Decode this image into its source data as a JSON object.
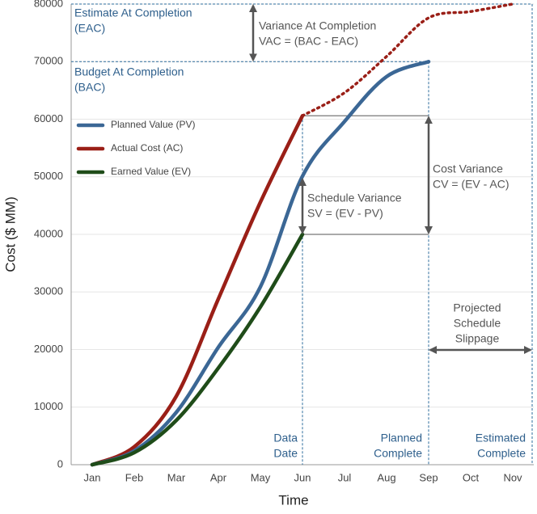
{
  "chart_data": {
    "type": "line",
    "x_label": "Time",
    "y_label": "Cost ($ MM)",
    "categories": [
      "Jan",
      "Feb",
      "Mar",
      "Apr",
      "May",
      "Jun",
      "Jul",
      "Aug",
      "Sep",
      "Oct",
      "Nov"
    ],
    "ylim": [
      0,
      80000
    ],
    "yticks": [
      0,
      10000,
      20000,
      30000,
      40000,
      50000,
      60000,
      70000,
      80000
    ],
    "grid": true,
    "series": [
      {
        "name": "Planned Value (PV)",
        "color": "#3b6795",
        "values": [
          0,
          2400,
          9100,
          20400,
          30900,
          50100,
          59600,
          67400,
          70000,
          null,
          null
        ]
      },
      {
        "name": "Actual Cost (AC)",
        "color": "#9a1f17",
        "values": [
          0,
          3100,
          11900,
          28800,
          45600,
          60600,
          null,
          null,
          null,
          null,
          null
        ],
        "projected_values": [
          null,
          null,
          null,
          null,
          null,
          60600,
          64600,
          70900,
          77600,
          78700,
          80000
        ]
      },
      {
        "name": "Earned Value (EV)",
        "color": "#1f4c19",
        "values": [
          0,
          2100,
          7700,
          16800,
          27400,
          40000,
          null,
          null,
          null,
          null,
          null
        ]
      }
    ],
    "annotations": [
      {
        "lines": [
          "Estimate At Completion",
          "(EAC)"
        ]
      },
      {
        "lines": [
          "Budget At Completion",
          "(BAC)"
        ]
      },
      {
        "lines": [
          "Variance At Completion",
          "VAC = (BAC - EAC)"
        ]
      },
      {
        "lines": [
          "Cost Variance",
          "CV = (EV - AC)"
        ]
      },
      {
        "lines": [
          "Schedule Variance",
          "SV = (EV - PV)"
        ]
      },
      {
        "lines": [
          "Projected",
          "Schedule",
          "Slippage"
        ]
      },
      {
        "lines": [
          "Data",
          "Date"
        ]
      },
      {
        "lines": [
          "Planned",
          "Complete"
        ]
      },
      {
        "lines": [
          "Estimated",
          "Complete"
        ]
      }
    ]
  }
}
